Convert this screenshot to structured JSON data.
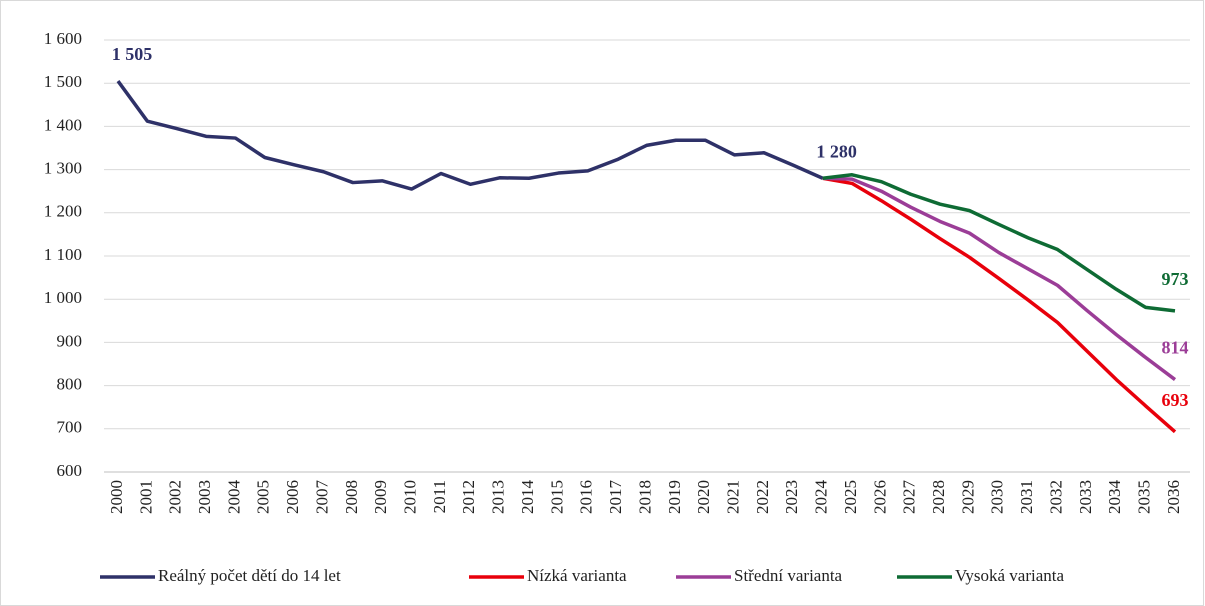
{
  "chart_data": {
    "type": "line",
    "categories": [
      "2000",
      "2001",
      "2002",
      "2003",
      "2004",
      "2005",
      "2006",
      "2007",
      "2008",
      "2009",
      "2010",
      "2011",
      "2012",
      "2013",
      "2014",
      "2015",
      "2016",
      "2017",
      "2018",
      "2019",
      "2020",
      "2021",
      "2022",
      "2023",
      "2024",
      "2025",
      "2026",
      "2027",
      "2028",
      "2029",
      "2030",
      "2031",
      "2032",
      "2033",
      "2034",
      "2035",
      "2036"
    ],
    "series": [
      {
        "name": "Reálný počet dětí do 14 let",
        "color": "#2e3168",
        "values": [
          1505,
          1412,
          1395,
          1377,
          1373,
          1328,
          1311,
          1295,
          1270,
          1274,
          1255,
          1291,
          1266,
          1281,
          1280,
          1292,
          1297,
          1323,
          1356,
          1368,
          1368,
          1334,
          1339,
          1310,
          1280,
          null,
          null,
          null,
          null,
          null,
          null,
          null,
          null,
          null,
          null,
          null,
          null
        ],
        "value_labels": [
          "1 505",
          null,
          null,
          null,
          null,
          null,
          null,
          null,
          null,
          null,
          null,
          null,
          null,
          null,
          null,
          null,
          null,
          null,
          null,
          null,
          null,
          null,
          null,
          null,
          "1 280",
          null,
          null,
          null,
          null,
          null,
          null,
          null,
          null,
          null,
          null,
          null,
          null
        ]
      },
      {
        "name": "Nízká varianta",
        "color": "#e8000b",
        "values": [
          null,
          null,
          null,
          null,
          null,
          null,
          null,
          null,
          null,
          null,
          null,
          null,
          null,
          null,
          null,
          null,
          null,
          null,
          null,
          null,
          null,
          null,
          null,
          null,
          1280,
          1268,
          1228,
          1185,
          1140,
          1097,
          1048,
          998,
          946,
          880,
          814,
          753,
          693
        ]
      },
      {
        "name": "Střední varianta",
        "color": "#9b3d97",
        "values": [
          null,
          null,
          null,
          null,
          null,
          null,
          null,
          null,
          null,
          null,
          null,
          null,
          null,
          null,
          null,
          null,
          null,
          null,
          null,
          null,
          null,
          null,
          null,
          null,
          1280,
          1278,
          1250,
          1213,
          1180,
          1153,
          1108,
          1070,
          1032,
          974,
          918,
          865,
          814
        ]
      },
      {
        "name": "Vysoká varianta",
        "color": "#0e6b34",
        "values": [
          null,
          null,
          null,
          null,
          null,
          null,
          null,
          null,
          null,
          null,
          null,
          null,
          null,
          null,
          null,
          null,
          null,
          null,
          null,
          null,
          null,
          null,
          null,
          null,
          1280,
          1288,
          1272,
          1243,
          1220,
          1205,
          1173,
          1142,
          1115,
          1069,
          1023,
          981,
          973
        ]
      }
    ],
    "ylim": [
      600,
      1600
    ],
    "yticks": [
      600,
      700,
      800,
      900,
      {
        "value": 1000,
        "label": "1 000"
      },
      {
        "value": 1100,
        "label": "1 100"
      },
      {
        "value": 1200,
        "label": "1 200"
      },
      {
        "value": 1300,
        "label": "1 300"
      },
      {
        "value": 1400,
        "label": "1 400"
      },
      {
        "value": 1500,
        "label": "1 500"
      },
      {
        "value": 1600,
        "label": "1 600"
      }
    ],
    "grid": true,
    "legend": "bottom"
  }
}
